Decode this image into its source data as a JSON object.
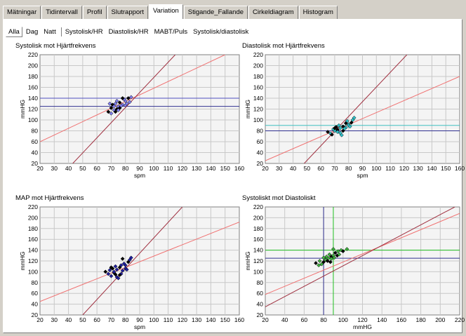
{
  "top_tabs": [
    "Mätningar",
    "Tidintervall",
    "Profil",
    "Slutrapport",
    "Variation",
    "Stigande_Fallande",
    "Cirkeldiagram",
    "Histogram"
  ],
  "top_active": 4,
  "sub_tabs": [
    "Alla",
    "Dag",
    "Natt",
    "Systolisk/HR",
    "Diastolisk/HR",
    "MABT/Puls",
    "Systolisk/diastolisk"
  ],
  "sub_active": 0,
  "colors": {
    "plot_bg": "#f4f4f4",
    "grid": "#c8c8c8",
    "regression_light": "#f07070",
    "regression_dark": "#a03040",
    "point_dark": "#000000"
  },
  "chart_data": [
    {
      "type": "scatter",
      "title": "Systolisk mot Hjärtfrekvens",
      "xlabel": "spm",
      "ylabel": "mmHG",
      "xlim": [
        20,
        160
      ],
      "ylim": [
        20,
        220
      ],
      "xticks": [
        20,
        30,
        40,
        50,
        60,
        70,
        80,
        90,
        100,
        110,
        120,
        130,
        140,
        150,
        160
      ],
      "yticks": [
        20,
        40,
        60,
        80,
        100,
        120,
        140,
        160,
        180,
        200,
        220
      ],
      "point_color": "#8080f0",
      "hlines": [
        {
          "y": 140,
          "color": "#5050c0"
        },
        {
          "y": 125,
          "color": "#303090"
        }
      ],
      "vlines": [],
      "lines": [
        {
          "from": [
            20,
            60
          ],
          "to": [
            150,
            220
          ],
          "color": "#f07070"
        },
        {
          "from": [
            43,
            20
          ],
          "to": [
            115,
            220
          ],
          "color": "#a03040"
        }
      ],
      "points": [
        [
          68,
          115
        ],
        [
          70,
          112
        ],
        [
          72,
          118
        ],
        [
          74,
          120
        ],
        [
          75,
          125
        ],
        [
          73,
          130
        ],
        [
          76,
          132
        ],
        [
          78,
          128
        ],
        [
          80,
          135
        ],
        [
          82,
          140
        ],
        [
          79,
          138
        ],
        [
          77,
          126
        ],
        [
          71,
          128
        ],
        [
          69,
          130
        ],
        [
          74,
          135
        ],
        [
          76,
          122
        ],
        [
          80,
          127
        ],
        [
          83,
          133
        ],
        [
          78,
          140
        ],
        [
          75,
          118
        ],
        [
          72,
          125
        ],
        [
          70,
          122
        ],
        [
          81,
          130
        ],
        [
          84,
          142
        ],
        [
          73,
          115
        ]
      ]
    },
    {
      "type": "scatter",
      "title": "Diastolisk mot Hjärtfrekvens",
      "xlabel": "spm",
      "ylabel": "mmHG",
      "xlim": [
        20,
        160
      ],
      "ylim": [
        20,
        220
      ],
      "xticks": [
        20,
        30,
        40,
        50,
        60,
        70,
        80,
        90,
        100,
        110,
        120,
        130,
        140,
        150,
        160
      ],
      "yticks": [
        20,
        40,
        60,
        80,
        100,
        120,
        140,
        160,
        180,
        200,
        220
      ],
      "point_color": "#30c0c8",
      "hlines": [
        {
          "y": 90,
          "color": "#40c0c0"
        },
        {
          "y": 80,
          "color": "#303090"
        }
      ],
      "vlines": [],
      "lines": [
        {
          "from": [
            20,
            25
          ],
          "to": [
            160,
            180
          ],
          "color": "#f07070"
        },
        {
          "from": [
            48,
            20
          ],
          "to": [
            122,
            220
          ],
          "color": "#a03040"
        }
      ],
      "points": [
        [
          65,
          78
        ],
        [
          67,
          75
        ],
        [
          70,
          80
        ],
        [
          72,
          82
        ],
        [
          74,
          85
        ],
        [
          73,
          90
        ],
        [
          76,
          88
        ],
        [
          78,
          86
        ],
        [
          80,
          92
        ],
        [
          82,
          95
        ],
        [
          79,
          98
        ],
        [
          77,
          84
        ],
        [
          71,
          87
        ],
        [
          69,
          83
        ],
        [
          74,
          76
        ],
        [
          76,
          80
        ],
        [
          80,
          90
        ],
        [
          83,
          100
        ],
        [
          78,
          94
        ],
        [
          75,
          72
        ],
        [
          72,
          78
        ],
        [
          70,
          85
        ],
        [
          81,
          88
        ],
        [
          84,
          104
        ],
        [
          68,
          73
        ]
      ]
    },
    {
      "type": "scatter",
      "title": "MAP mot Hjärtfrekvens",
      "xlabel": "spm",
      "ylabel": "mmHG",
      "xlim": [
        20,
        160
      ],
      "ylim": [
        20,
        220
      ],
      "xticks": [
        20,
        30,
        40,
        50,
        60,
        70,
        80,
        90,
        100,
        110,
        120,
        130,
        140,
        150,
        160
      ],
      "yticks": [
        20,
        40,
        60,
        80,
        100,
        120,
        140,
        160,
        180,
        200,
        220
      ],
      "point_color": "#2020a0",
      "hlines": [],
      "vlines": [],
      "lines": [
        {
          "from": [
            20,
            45
          ],
          "to": [
            160,
            192
          ],
          "color": "#f07070"
        },
        {
          "from": [
            50,
            20
          ],
          "to": [
            120,
            220
          ],
          "color": "#a03040"
        }
      ],
      "points": [
        [
          66,
          100
        ],
        [
          68,
          96
        ],
        [
          70,
          92
        ],
        [
          72,
          98
        ],
        [
          74,
          104
        ],
        [
          73,
          110
        ],
        [
          76,
          108
        ],
        [
          78,
          102
        ],
        [
          80,
          112
        ],
        [
          82,
          118
        ],
        [
          79,
          115
        ],
        [
          77,
          96
        ],
        [
          71,
          106
        ],
        [
          69,
          103
        ],
        [
          74,
          90
        ],
        [
          76,
          94
        ],
        [
          80,
          106
        ],
        [
          83,
          122
        ],
        [
          78,
          124
        ],
        [
          75,
          88
        ],
        [
          72,
          100
        ],
        [
          70,
          108
        ],
        [
          81,
          104
        ],
        [
          84,
          126
        ],
        [
          73,
          95
        ],
        [
          77,
          112
        ]
      ]
    },
    {
      "type": "scatter",
      "title": "Systoliskt mot Diastoliskt",
      "xlabel": "mmHG",
      "ylabel": "mmHG",
      "xlim": [
        20,
        220
      ],
      "ylim": [
        20,
        220
      ],
      "xticks": [
        20,
        40,
        60,
        80,
        100,
        120,
        140,
        160,
        180,
        200,
        220
      ],
      "yticks": [
        20,
        40,
        60,
        80,
        100,
        120,
        140,
        160,
        180,
        200,
        220
      ],
      "point_color": "#40b040",
      "hlines": [
        {
          "y": 140,
          "color": "#20c020"
        },
        {
          "y": 125,
          "color": "#303090"
        }
      ],
      "vlines": [
        {
          "x": 80,
          "color": "#303090"
        },
        {
          "x": 90,
          "color": "#20c020"
        }
      ],
      "lines": [
        {
          "from": [
            20,
            58
          ],
          "to": [
            220,
            208
          ],
          "color": "#f07070"
        },
        {
          "from": [
            20,
            35
          ],
          "to": [
            215,
            220
          ],
          "color": "#a03040"
        }
      ],
      "points": [
        [
          72,
          116
        ],
        [
          75,
          112
        ],
        [
          78,
          114
        ],
        [
          80,
          118
        ],
        [
          82,
          122
        ],
        [
          85,
          125
        ],
        [
          88,
          128
        ],
        [
          86,
          132
        ],
        [
          90,
          130
        ],
        [
          92,
          135
        ],
        [
          95,
          138
        ],
        [
          98,
          140
        ],
        [
          84,
          120
        ],
        [
          88,
          124
        ],
        [
          90,
          142
        ],
        [
          94,
          130
        ],
        [
          80,
          126
        ],
        [
          76,
          120
        ],
        [
          100,
          138
        ],
        [
          104,
          142
        ],
        [
          96,
          132
        ],
        [
          87,
          118
        ],
        [
          83,
          128
        ],
        [
          91,
          126
        ]
      ]
    }
  ]
}
